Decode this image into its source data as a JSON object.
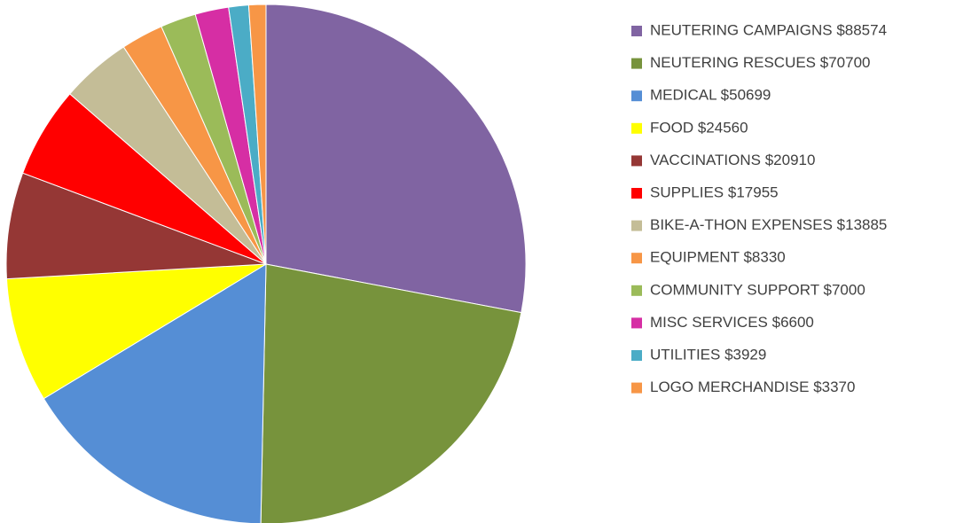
{
  "chart_data": {
    "type": "pie",
    "categories": [
      "NEUTERING CAMPAIGNS $88574",
      "NEUTERING RESCUES $70700",
      "MEDICAL  $50699",
      "FOOD  $24560",
      "VACCINATIONS $20910",
      "SUPPLIES  $17955",
      "BIKE-A-THON EXPENSES $13885",
      "EQUIPMENT $8330",
      "COMMUNITY SUPPORT $7000",
      "MISC SERVICES  $6600",
      "UTILITIES  $3929",
      "LOGO MERCHANDISE  $3370"
    ],
    "values": [
      88574,
      70700,
      50699,
      24560,
      20910,
      17955,
      13885,
      8330,
      7000,
      6600,
      3929,
      3370
    ],
    "colors": [
      "#8064a2",
      "#77933c",
      "#558ed5",
      "#ffff00",
      "#953735",
      "#ff0000",
      "#c4bd97",
      "#f79646",
      "#9bbb59",
      "#d62ea4",
      "#4bacc6",
      "#f79646"
    ],
    "legend": "right"
  }
}
